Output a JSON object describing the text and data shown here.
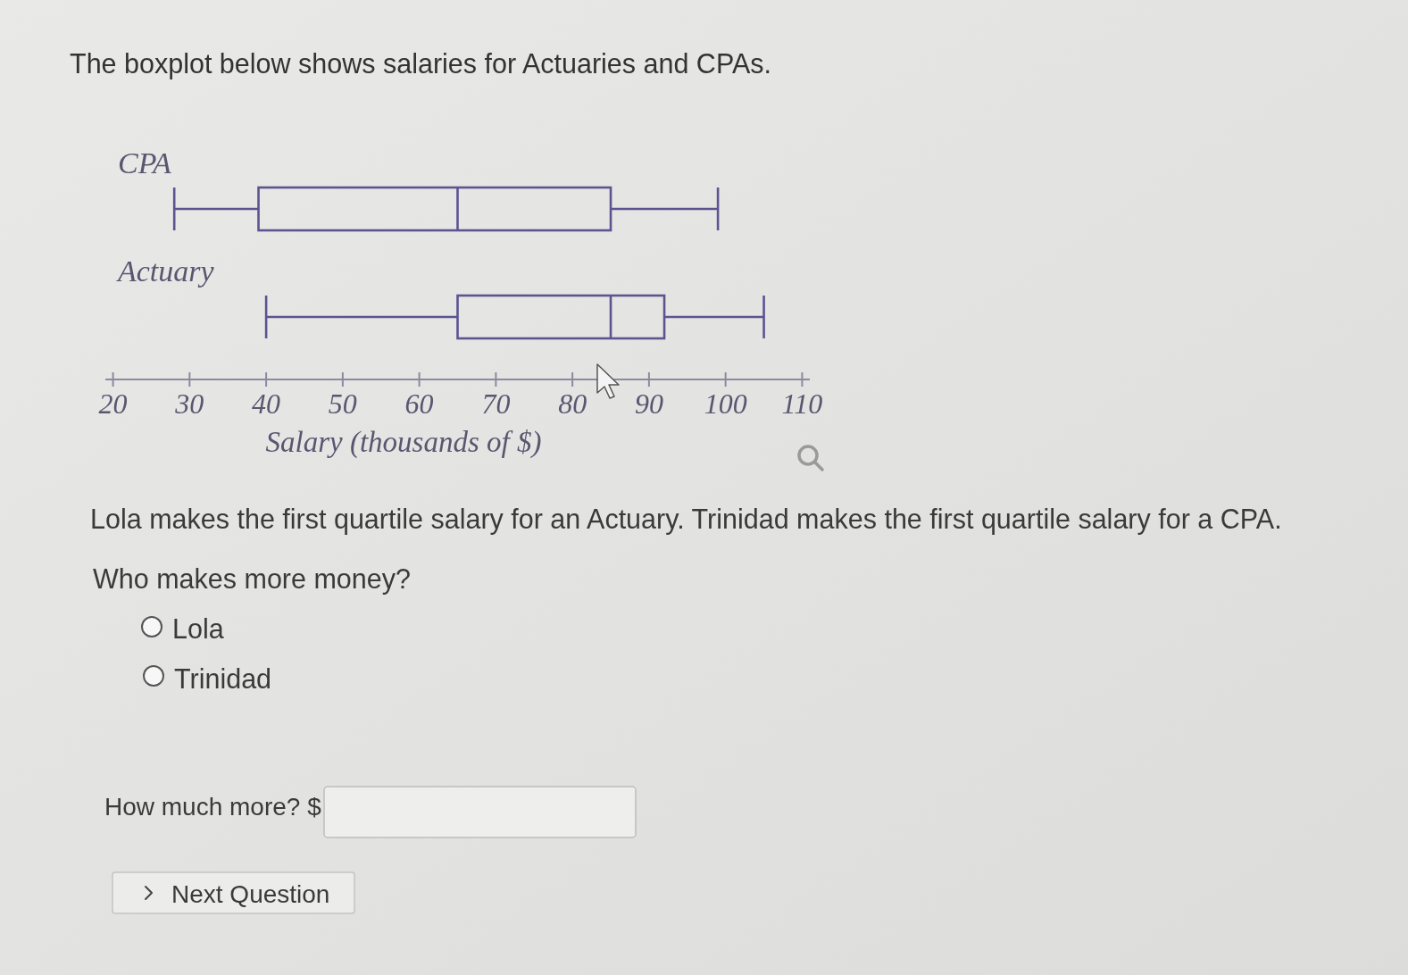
{
  "chart_data": {
    "type": "box",
    "title": "The boxplot below shows salaries for Actuaries and CPAs.",
    "orientation": "horizontal",
    "categories": [
      "CPA",
      "Actuary"
    ],
    "boxes": [
      {
        "low": 28,
        "q1": 39,
        "median": 65,
        "q3": 85,
        "high": 99
      },
      {
        "low": 40,
        "q1": 65,
        "median": 85,
        "q3": 92,
        "high": 105
      }
    ],
    "color": "#5b5490",
    "xlim": [
      19,
      111
    ],
    "xticks": [
      20,
      30,
      40,
      50,
      60,
      70,
      80,
      90,
      100,
      110
    ],
    "xlabel": "Salary (thousands of $)",
    "annotations": [
      "Lola makes the first quartile salary for an Actuary. Trinidad makes the first quartile salary for a CPA.",
      "Who makes more money?",
      "Lola",
      "Trinidad",
      "How much more? $",
      "Next Question"
    ]
  }
}
